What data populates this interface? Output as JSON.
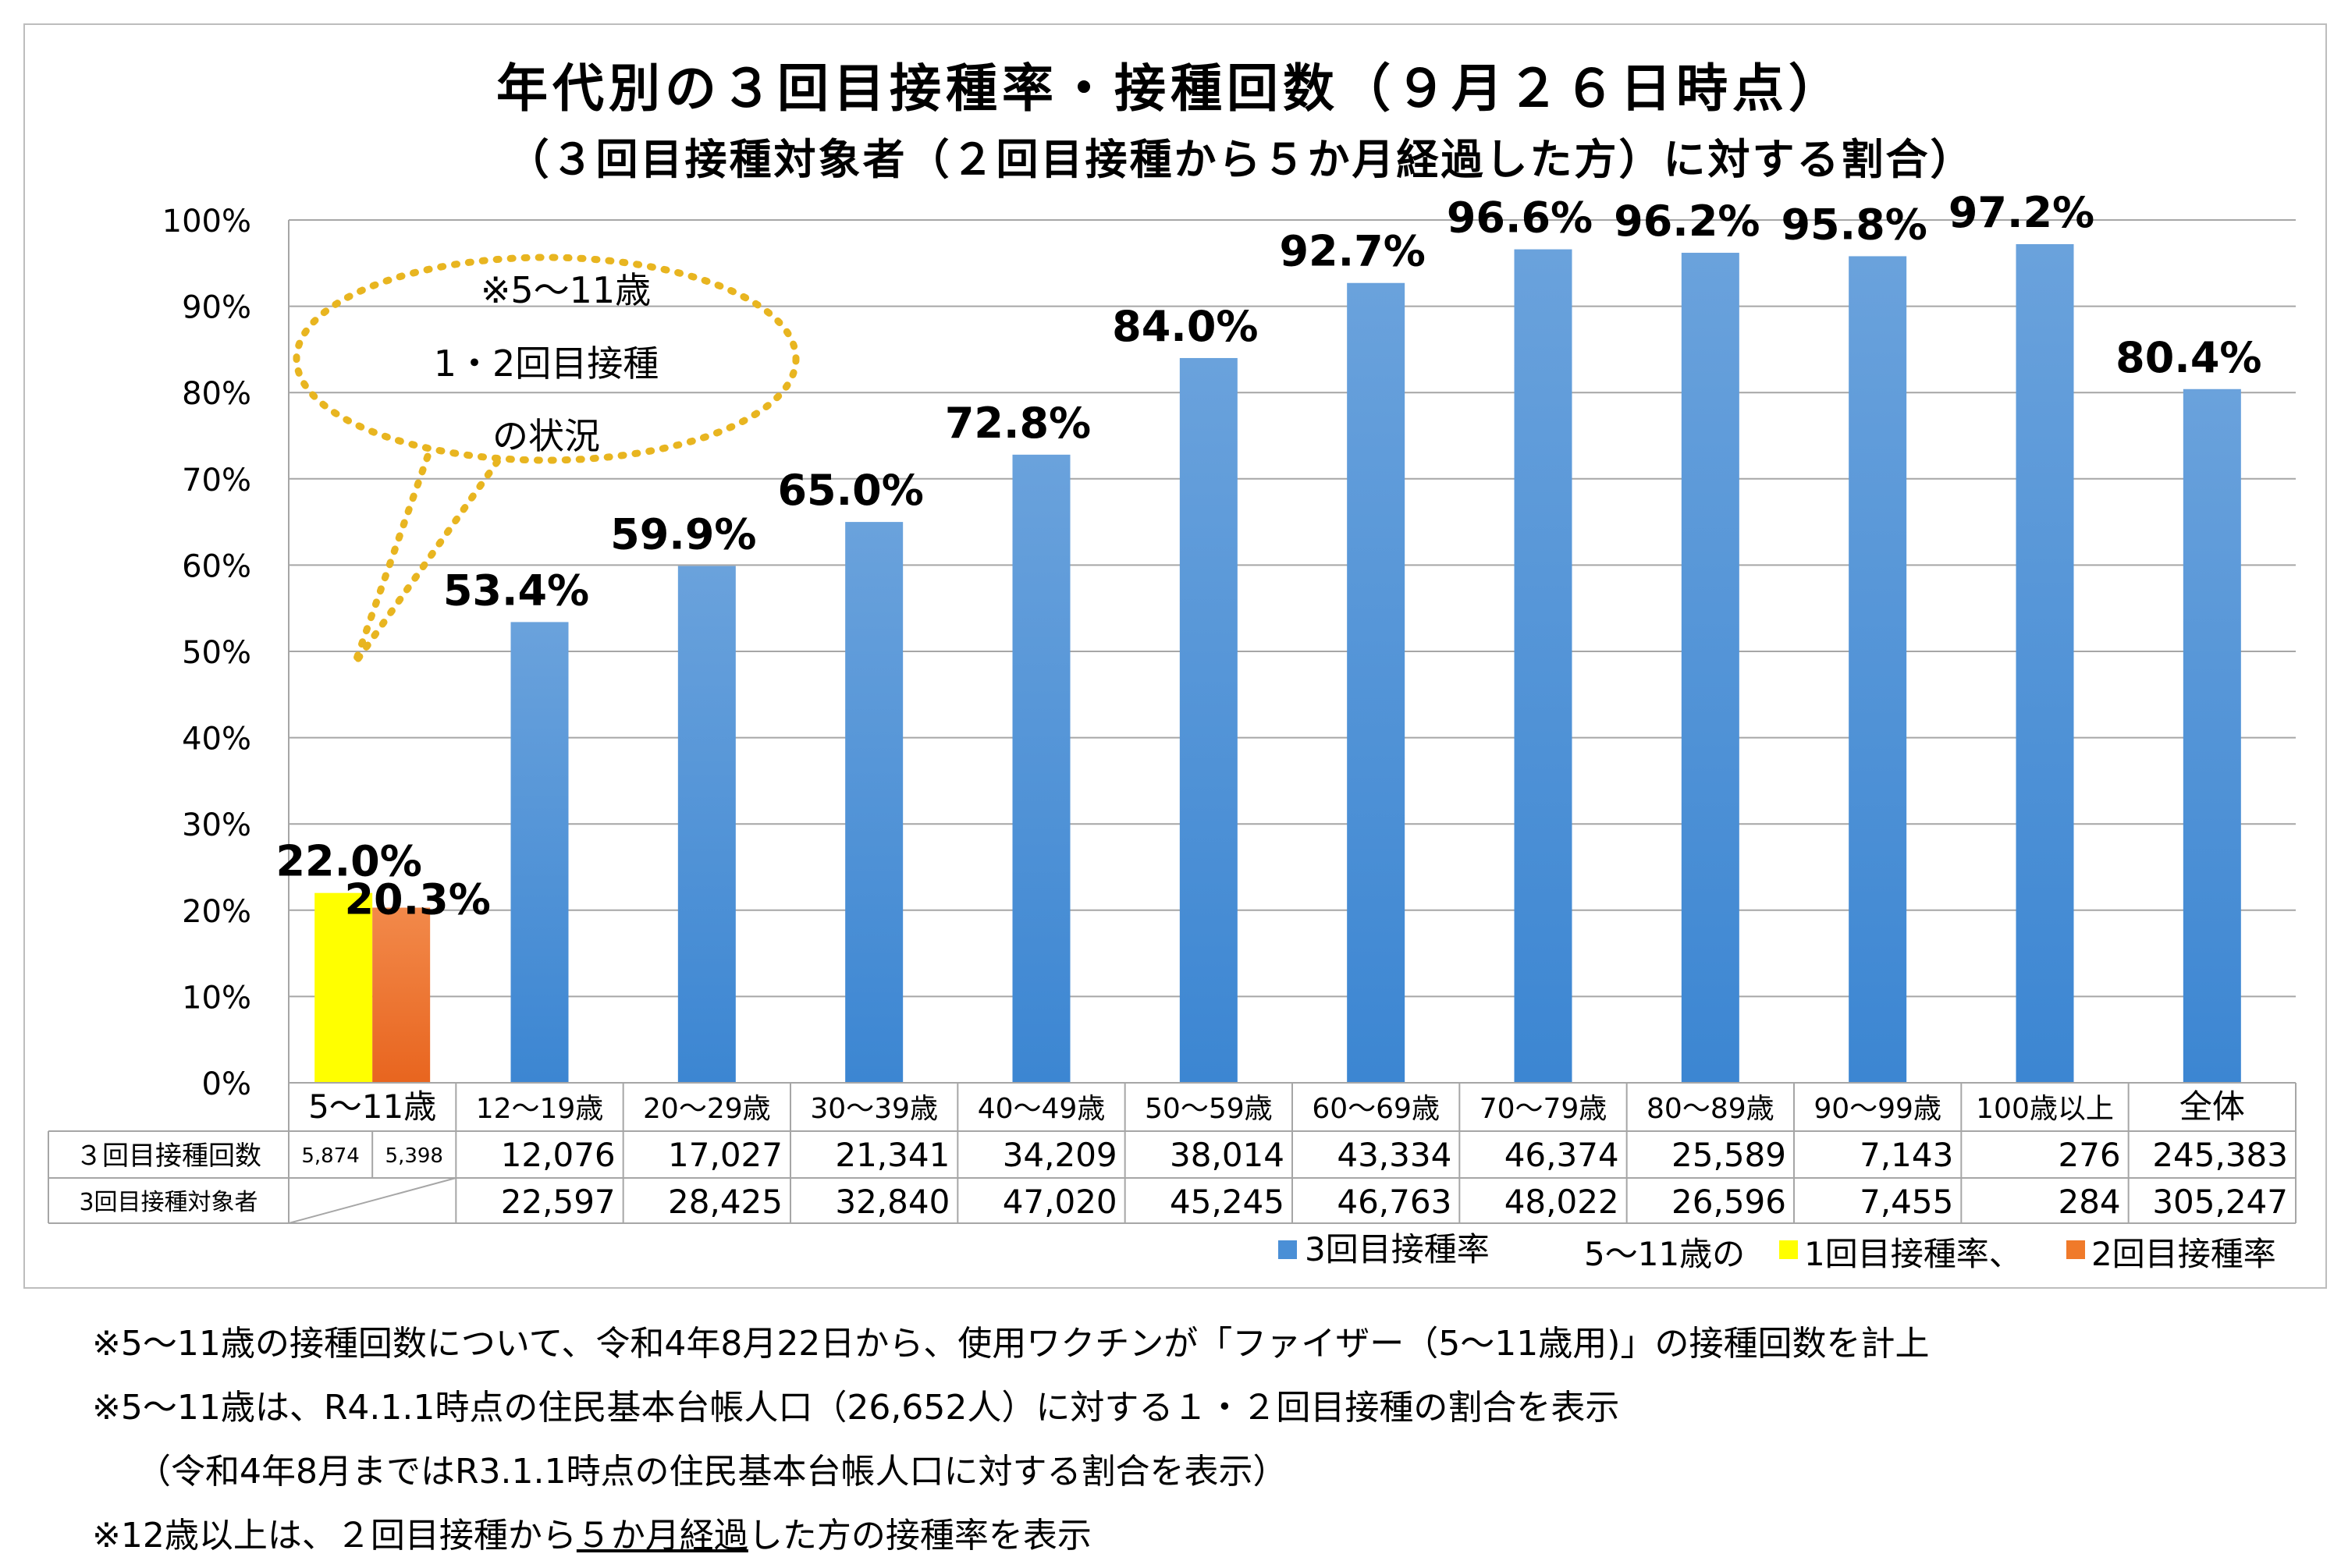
{
  "title": "年代別の３回目接種率・接種回数（９月２６日時点）",
  "subtitle": "（３回目接種対象者（２回目接種から５か月経過した方）に対する割合）",
  "callout": {
    "line1": "※5～11歳",
    "line2": "1・2回目接種",
    "line3": "の状況"
  },
  "colors": {
    "blue": "#4a8fd6",
    "yellow": "#ffff00",
    "orange": "#f07a2a",
    "callout": "#e8b520",
    "grid": "#a6a6a6"
  },
  "chart_data": {
    "type": "bar",
    "ylim": [
      0,
      100
    ],
    "y_ticks": [
      "0%",
      "10%",
      "20%",
      "30%",
      "40%",
      "50%",
      "60%",
      "70%",
      "80%",
      "90%",
      "100%"
    ],
    "grid": true,
    "categories": [
      "5～11歳",
      "12～19歳",
      "20～29歳",
      "30～39歳",
      "40～49歳",
      "50～59歳",
      "60～69歳",
      "70～79歳",
      "80～89歳",
      "90～99歳",
      "100歳以上",
      "全体"
    ],
    "series": [
      {
        "name": "3回目接種率",
        "values": [
          null,
          53.4,
          59.9,
          65.0,
          72.8,
          84.0,
          92.7,
          96.6,
          96.2,
          95.8,
          97.2,
          80.4
        ],
        "labels": [
          "",
          "53.4%",
          "59.9%",
          "65.0%",
          "72.8%",
          "84.0%",
          "92.7%",
          "96.6%",
          "96.2%",
          "95.8%",
          "97.2%",
          "80.4%"
        ]
      },
      {
        "name": "1回目接種率",
        "values": [
          22.0,
          null,
          null,
          null,
          null,
          null,
          null,
          null,
          null,
          null,
          null,
          null
        ],
        "labels": [
          "22.0%"
        ]
      },
      {
        "name": "2回目接種率",
        "values": [
          20.3,
          null,
          null,
          null,
          null,
          null,
          null,
          null,
          null,
          null,
          null,
          null
        ],
        "labels": [
          "20.3%"
        ]
      }
    ],
    "legend": {
      "position": "bottom-right",
      "blue_label": "3回目接種率",
      "prefix": "5～11歳の",
      "yellow_label": "1回目接種率、",
      "orange_label": "2回目接種率"
    },
    "table": {
      "row1_label": "３回目接種回数",
      "row1_first_cells": [
        "5,874",
        "5,398"
      ],
      "row1_values": [
        "12,076",
        "17,027",
        "21,341",
        "34,209",
        "38,014",
        "43,334",
        "46,374",
        "25,589",
        "7,143",
        "276",
        "245,383"
      ],
      "row2_label": "3回目接種対象者",
      "row2_values": [
        "22,597",
        "28,425",
        "32,840",
        "47,020",
        "45,245",
        "46,763",
        "48,022",
        "26,596",
        "7,455",
        "284",
        "305,247"
      ]
    }
  },
  "notes": {
    "n1": "※5～11歳の接種回数について、令和4年8月22日から、使用ワクチンが「ファイザー（5～11歳用)」の接種回数を計上",
    "n2": "※5～11歳は、R4.1.1時点の住民基本台帳人口（26,652人）に対する１・２回目接種の割合を表示",
    "n3": "（令和4年8月まではR3.1.1時点の住民基本台帳人口に対する割合を表示）",
    "n4_a": "※12歳以上は、２回目接種から",
    "n4_b": "５か月経過",
    "n4_c": "した方の接種率を表示"
  }
}
